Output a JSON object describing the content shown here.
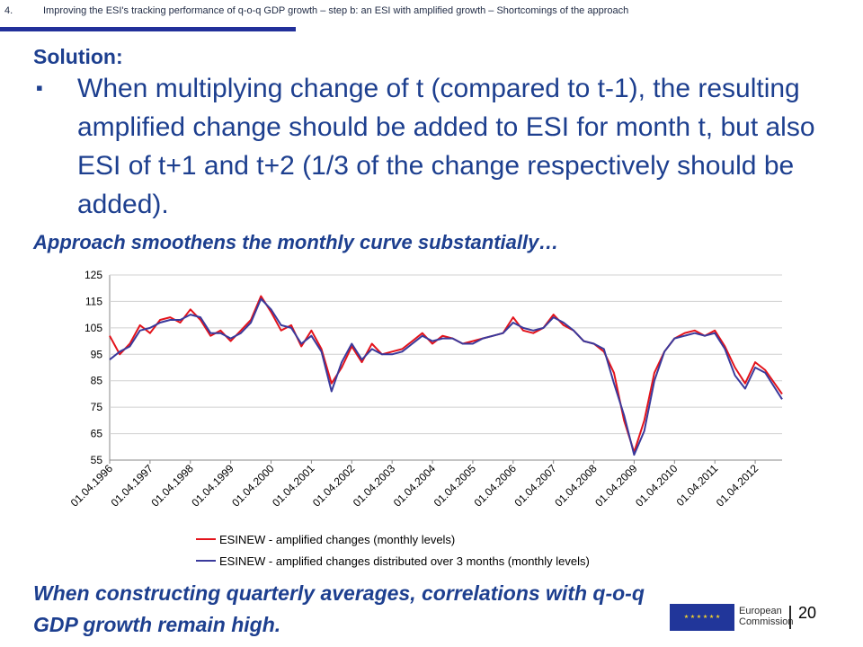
{
  "header": {
    "number": "4.",
    "text": "Improving the ESI's tracking performance of q-o-q GDP growth – step b: an ESI with amplified growth – Shortcomings of the approach"
  },
  "solution_label": "Solution",
  "solution_colon": ":",
  "bullet_glyph": "▪",
  "bullet_text": "When multiplying change of t (compared to t-1), the resulting amplified change should be added to ESI for month t, but also ESI of t+1 and t+2 (1/3 of the change respectively should be added).",
  "subheading": "Approach smoothens the monthly curve substantially…",
  "footer_text": "When constructing quarterly averages, correlations with q-o-q GDP growth remain high.",
  "logo": {
    "line1": "European",
    "line2": "Commission",
    "stars": "★ ★ ★ ★ ★ ★"
  },
  "page_number": "20",
  "colors": {
    "title_blue": "#1d3f8f",
    "rule_blue": "#22309a",
    "series_red": "#e3131b",
    "series_blue": "#3a3a9c"
  },
  "chart_data": {
    "type": "line",
    "y_ticks": [
      "125",
      "115",
      "105",
      "95",
      "85",
      "75",
      "65",
      "55"
    ],
    "ylim": [
      55,
      125
    ],
    "x_tick_labels": [
      "01.04.1996",
      "01.04.1997",
      "01.04.1998",
      "01.04.1999",
      "01.04.2000",
      "01.04.2001",
      "01.04.2002",
      "01.04.2003",
      "01.04.2004",
      "01.04.2005",
      "01.04.2006",
      "01.04.2007",
      "01.04.2008",
      "01.04.2009",
      "01.04.2010",
      "01.04.2011",
      "01.04.2012"
    ],
    "x_start": "1996-04",
    "x_end": "2012-12",
    "legend_position": "bottom",
    "series": [
      {
        "name": "ESINEW - amplified changes (monthly levels)",
        "color": "#e3131b",
        "x": [
          "1996-04",
          "1996-07",
          "1996-10",
          "1997-01",
          "1997-04",
          "1997-07",
          "1997-10",
          "1998-01",
          "1998-04",
          "1998-07",
          "1998-10",
          "1999-01",
          "1999-04",
          "1999-07",
          "1999-10",
          "2000-01",
          "2000-04",
          "2000-07",
          "2000-10",
          "2001-01",
          "2001-04",
          "2001-07",
          "2001-10",
          "2002-01",
          "2002-04",
          "2002-07",
          "2002-10",
          "2003-01",
          "2003-04",
          "2003-07",
          "2003-10",
          "2004-01",
          "2004-04",
          "2004-07",
          "2004-10",
          "2005-01",
          "2005-04",
          "2005-07",
          "2005-10",
          "2006-01",
          "2006-04",
          "2006-07",
          "2006-10",
          "2007-01",
          "2007-04",
          "2007-07",
          "2007-10",
          "2008-01",
          "2008-04",
          "2008-07",
          "2008-10",
          "2009-01",
          "2009-04",
          "2009-07",
          "2009-10",
          "2010-01",
          "2010-04",
          "2010-07",
          "2010-10",
          "2011-01",
          "2011-04",
          "2011-07",
          "2011-10",
          "2012-01",
          "2012-04",
          "2012-07",
          "2012-12"
        ],
        "y": [
          102,
          95,
          99,
          106,
          103,
          108,
          109,
          107,
          112,
          108,
          102,
          104,
          100,
          104,
          108,
          117,
          111,
          104,
          106,
          98,
          104,
          97,
          84,
          90,
          98,
          92,
          99,
          95,
          96,
          97,
          100,
          103,
          99,
          102,
          101,
          99,
          100,
          101,
          102,
          103,
          109,
          104,
          103,
          105,
          110,
          106,
          104,
          100,
          99,
          96,
          88,
          70,
          58,
          70,
          88,
          96,
          101,
          103,
          104,
          102,
          104,
          98,
          90,
          84,
          92,
          89,
          80
        ]
      },
      {
        "name": "ESINEW - amplified changes distributed over 3 months (monthly levels)",
        "color": "#3a3a9c",
        "x": [
          "1996-04",
          "1996-07",
          "1996-10",
          "1997-01",
          "1997-04",
          "1997-07",
          "1997-10",
          "1998-01",
          "1998-04",
          "1998-07",
          "1998-10",
          "1999-01",
          "1999-04",
          "1999-07",
          "1999-10",
          "2000-01",
          "2000-04",
          "2000-07",
          "2000-10",
          "2001-01",
          "2001-04",
          "2001-07",
          "2001-10",
          "2002-01",
          "2002-04",
          "2002-07",
          "2002-10",
          "2003-01",
          "2003-04",
          "2003-07",
          "2003-10",
          "2004-01",
          "2004-04",
          "2004-07",
          "2004-10",
          "2005-01",
          "2005-04",
          "2005-07",
          "2005-10",
          "2006-01",
          "2006-04",
          "2006-07",
          "2006-10",
          "2007-01",
          "2007-04",
          "2007-07",
          "2007-10",
          "2008-01",
          "2008-04",
          "2008-07",
          "2008-10",
          "2009-01",
          "2009-04",
          "2009-07",
          "2009-10",
          "2010-01",
          "2010-04",
          "2010-07",
          "2010-10",
          "2011-01",
          "2011-04",
          "2011-07",
          "2011-10",
          "2012-01",
          "2012-04",
          "2012-07",
          "2012-12"
        ],
        "y": [
          93,
          96,
          98,
          104,
          105,
          107,
          108,
          108,
          110,
          109,
          103,
          103,
          101,
          103,
          107,
          116,
          112,
          106,
          105,
          99,
          102,
          96,
          81,
          92,
          99,
          93,
          97,
          95,
          95,
          96,
          99,
          102,
          100,
          101,
          101,
          99,
          99,
          101,
          102,
          103,
          107,
          105,
          104,
          105,
          109,
          107,
          104,
          100,
          99,
          97,
          84,
          72,
          57,
          66,
          85,
          96,
          101,
          102,
          103,
          102,
          103,
          97,
          87,
          82,
          90,
          88,
          78
        ]
      }
    ]
  }
}
